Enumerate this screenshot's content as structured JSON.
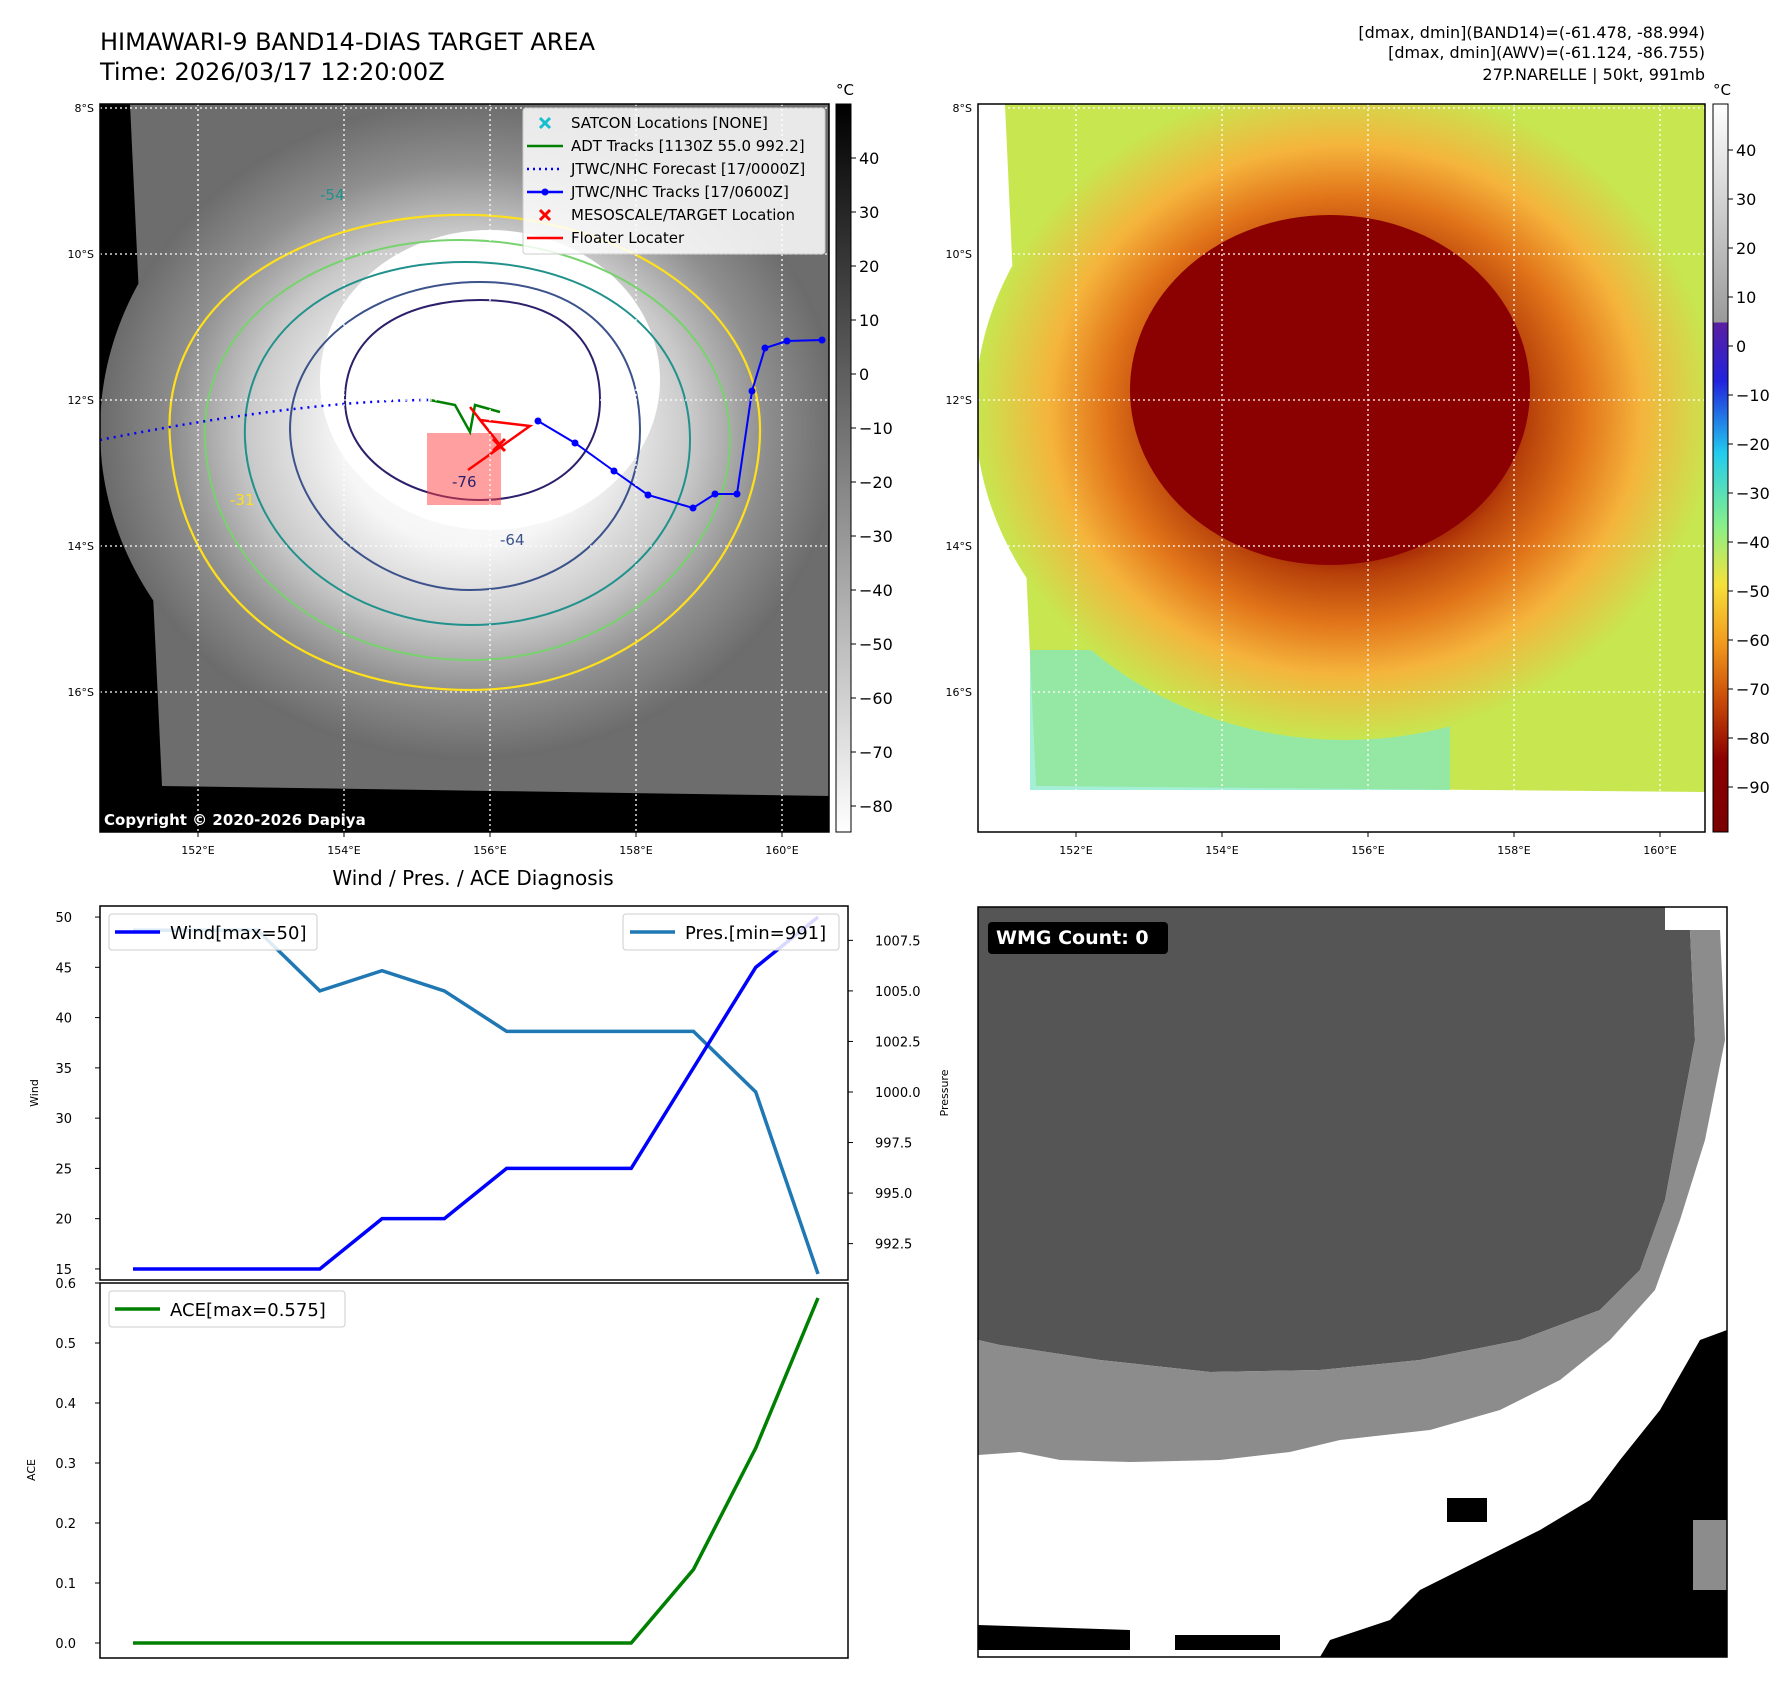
{
  "header": {
    "title": "HIMAWARI-9 BAND14-DIAS TARGET AREA",
    "time": "Time: 2026/03/17 12:20:00Z",
    "stats_band14": "[dmax, dmin](BAND14)=(-61.478, -88.994)",
    "stats_awv": "[dmax, dmin](AWV)=(-61.124, -86.755)",
    "storm": "27P.NARELLE | 50kt, 991mb"
  },
  "map_left": {
    "lat_labels": [
      "8°S",
      "10°S",
      "12°S",
      "14°S",
      "16°S"
    ],
    "lon_labels": [
      "152°E",
      "154°E",
      "156°E",
      "158°E",
      "160°E"
    ],
    "copyright": "Copyright © 2020-2026 Dapiya",
    "contour_labels": [
      "-31",
      "-54",
      "-64",
      "-76"
    ],
    "legend": [
      {
        "label": "SATCON Locations [NONE]",
        "color": "#17becf",
        "marker": "x"
      },
      {
        "label": "ADT Tracks [1130Z 55.0 992.2]",
        "color": "#008000",
        "marker": "line"
      },
      {
        "label": "JTWC/NHC Forecast [17/0000Z]",
        "color": "#0000ff",
        "marker": "dotted"
      },
      {
        "label": "JTWC/NHC Tracks [17/0600Z]",
        "color": "#0000ff",
        "marker": "line-dot"
      },
      {
        "label": "MESOSCALE/TARGET Location",
        "color": "#ff0000",
        "marker": "x"
      },
      {
        "label": "Floater Locater",
        "color": "#ff0000",
        "marker": "line"
      }
    ],
    "colorbar": {
      "unit": "°C",
      "ticks": [
        "40",
        "30",
        "20",
        "10",
        "0",
        "−10",
        "−20",
        "−30",
        "−40",
        "−50",
        "−60",
        "−70",
        "−80"
      ]
    }
  },
  "map_right": {
    "lat_labels": [
      "8°S",
      "10°S",
      "12°S",
      "14°S",
      "16°S"
    ],
    "lon_labels": [
      "152°E",
      "154°E",
      "156°E",
      "158°E",
      "160°E"
    ],
    "colorbar": {
      "unit": "°C",
      "ticks": [
        "40",
        "30",
        "20",
        "10",
        "0",
        "−10",
        "−20",
        "−30",
        "−40",
        "−50",
        "−60",
        "−70",
        "−80",
        "−90"
      ]
    }
  },
  "wmg": {
    "label": "WMG Count: 0"
  },
  "chart_data": [
    {
      "type": "line",
      "title": "Wind / Pres. / ACE Diagnosis",
      "ylabel": "Wind",
      "y2label": "Pressure",
      "ylim": [
        13.9,
        51.1
      ],
      "y2lim": [
        990.7,
        1009.2
      ],
      "yticks": [
        15,
        20,
        25,
        30,
        35,
        40,
        45,
        50
      ],
      "y2ticks": [
        "992.5",
        "995.0",
        "997.5",
        "1000.0",
        "1002.5",
        "1005.0",
        "1007.5"
      ],
      "x": [
        0,
        1,
        2,
        3,
        4,
        5,
        6,
        7,
        8,
        9,
        10,
        11
      ],
      "series": [
        {
          "name": "Wind[max=50]",
          "axis": "left",
          "color": "#0000ff",
          "values": [
            15,
            15,
            15,
            15,
            20,
            20,
            25,
            25,
            25,
            35,
            45,
            50
          ]
        },
        {
          "name": "Pres.[min=991]",
          "axis": "right",
          "color": "#1f77b4",
          "values": [
            1008,
            1008,
            1008,
            1005,
            1006,
            1005,
            1003,
            1003,
            1003,
            1003,
            1000,
            991
          ]
        }
      ]
    },
    {
      "type": "line",
      "ylabel": "ACE",
      "ylim": [
        -0.025,
        0.6
      ],
      "yticks": [
        "0.0",
        "0.1",
        "0.2",
        "0.3",
        "0.4",
        "0.5",
        "0.6"
      ],
      "x": [
        0,
        1,
        2,
        3,
        4,
        5,
        6,
        7,
        8,
        9,
        10,
        11
      ],
      "series": [
        {
          "name": "ACE[max=0.575]",
          "axis": "left",
          "color": "#008000",
          "values": [
            0,
            0,
            0,
            0,
            0,
            0,
            0,
            0,
            0,
            0.1225,
            0.325,
            0.575
          ]
        }
      ]
    }
  ]
}
